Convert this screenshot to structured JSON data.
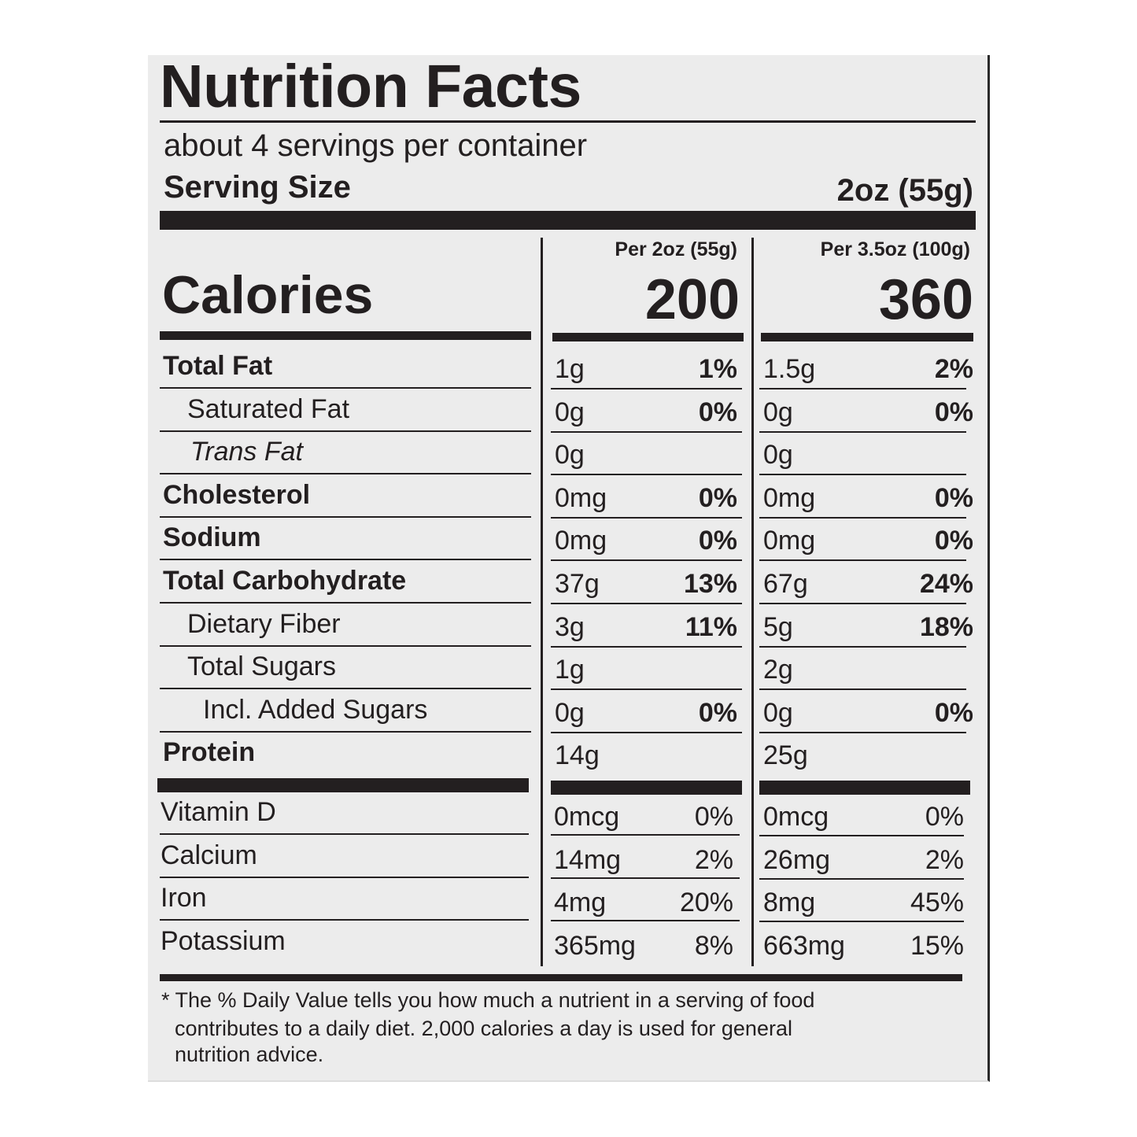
{
  "title": "Nutrition Facts",
  "servings_per_container": "about 4 servings per container",
  "serving_size_label": "Serving Size",
  "serving_size_value": "2oz (55g)",
  "columns": [
    {
      "header": "Per 2oz (55g)",
      "calories": "200"
    },
    {
      "header": "Per 3.5oz (100g)",
      "calories": "360"
    }
  ],
  "calories_label": "Calories",
  "nutrients": [
    {
      "label": "Total Fat",
      "style": "bold",
      "indent": 0,
      "v1": "1g",
      "p1": "1%",
      "v2": "1.5g",
      "p2": "2%"
    },
    {
      "label": "Saturated Fat",
      "style": "normal",
      "indent": 1,
      "v1": "0g",
      "p1": "0%",
      "v2": "0g",
      "p2": "0%"
    },
    {
      "label": "Trans Fat",
      "style": "italic",
      "indent": 1,
      "v1": "0g",
      "p1": "",
      "v2": "0g",
      "p2": ""
    },
    {
      "label": "Cholesterol",
      "style": "bold",
      "indent": 0,
      "v1": "0mg",
      "p1": "0%",
      "v2": "0mg",
      "p2": "0%"
    },
    {
      "label": "Sodium",
      "style": "bold",
      "indent": 0,
      "v1": "0mg",
      "p1": "0%",
      "v2": "0mg",
      "p2": "0%"
    },
    {
      "label": "Total Carbohydrate",
      "style": "bold",
      "indent": 0,
      "v1": "37g",
      "p1": "13%",
      "v2": "67g",
      "p2": "24%"
    },
    {
      "label": "Dietary Fiber",
      "style": "normal",
      "indent": 1,
      "v1": "3g",
      "p1": "11%",
      "v2": "5g",
      "p2": "18%"
    },
    {
      "label": "Total Sugars",
      "style": "normal",
      "indent": 1,
      "v1": "1g",
      "p1": "",
      "v2": "2g",
      "p2": ""
    },
    {
      "label": "Incl. Added Sugars",
      "style": "normal",
      "indent": 2,
      "v1": "0g",
      "p1": "0%",
      "v2": "0g",
      "p2": "0%"
    },
    {
      "label": "Protein",
      "style": "bold",
      "indent": 0,
      "v1": "14g",
      "p1": "",
      "v2": "25g",
      "p2": ""
    }
  ],
  "vitamins": [
    {
      "label": "Vitamin D",
      "v1": "0mcg",
      "p1": "0%",
      "v2": "0mcg",
      "p2": "0%"
    },
    {
      "label": "Calcium",
      "v1": "14mg",
      "p1": "2%",
      "v2": "26mg",
      "p2": "2%"
    },
    {
      "label": "Iron",
      "v1": "4mg",
      "p1": "20%",
      "v2": "8mg",
      "p2": "45%"
    },
    {
      "label": "Potassium",
      "v1": "365mg",
      "p1": "8%",
      "v2": "663mg",
      "p2": "15%"
    }
  ],
  "footnote": [
    "* The % Daily Value tells you how much a nutrient in a serving of food",
    "contributes to a daily diet. 2,000 calories a day is used for general",
    "nutrition advice."
  ]
}
